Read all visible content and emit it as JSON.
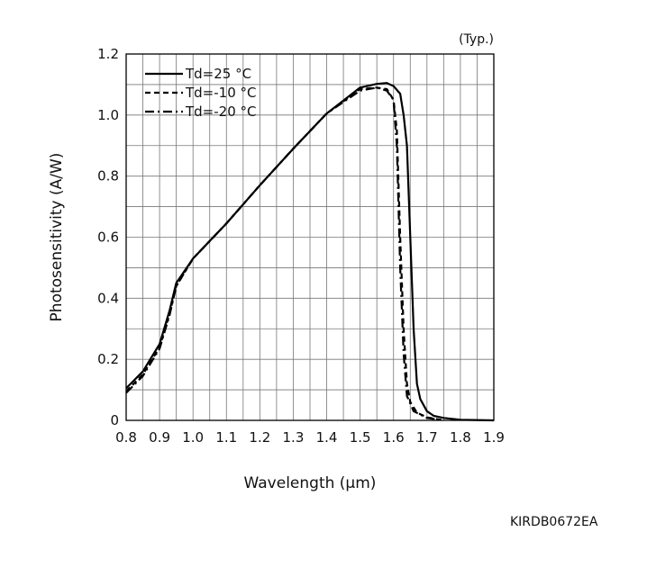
{
  "chart_data": {
    "type": "line",
    "note": "(Typ.)",
    "xlabel": "Wavelength (μm)",
    "ylabel": "Photosensitivity (A/W)",
    "xlim": [
      0.8,
      1.9
    ],
    "ylim": [
      0,
      1.2
    ],
    "grid": true,
    "legend_position": "top-left",
    "x_ticks": [
      "0.8",
      "0.9",
      "1.0",
      "1.1",
      "1.2",
      "1.3",
      "1.4",
      "1.5",
      "1.6",
      "1.7",
      "1.8",
      "1.9"
    ],
    "y_ticks": [
      "0",
      "0.2",
      "0.4",
      "0.6",
      "0.8",
      "1.0",
      "1.2"
    ],
    "series": [
      {
        "name": "Td=25 °C",
        "style": "solid",
        "color": "#000000",
        "points": [
          [
            0.8,
            0.105
          ],
          [
            0.85,
            0.16
          ],
          [
            0.9,
            0.25
          ],
          [
            0.93,
            0.36
          ],
          [
            0.95,
            0.45
          ],
          [
            1.0,
            0.53
          ],
          [
            1.1,
            0.645
          ],
          [
            1.2,
            0.77
          ],
          [
            1.3,
            0.89
          ],
          [
            1.4,
            1.005
          ],
          [
            1.5,
            1.09
          ],
          [
            1.55,
            1.102
          ],
          [
            1.58,
            1.105
          ],
          [
            1.6,
            1.095
          ],
          [
            1.62,
            1.07
          ],
          [
            1.63,
            1.0
          ],
          [
            1.64,
            0.9
          ],
          [
            1.65,
            0.6
          ],
          [
            1.66,
            0.3
          ],
          [
            1.67,
            0.12
          ],
          [
            1.68,
            0.07
          ],
          [
            1.7,
            0.03
          ],
          [
            1.72,
            0.015
          ],
          [
            1.75,
            0.008
          ],
          [
            1.8,
            0.002
          ],
          [
            1.9,
            0.0
          ]
        ]
      },
      {
        "name": "Td=-10 °C",
        "style": "dashed",
        "color": "#000000",
        "points": [
          [
            0.8,
            0.095
          ],
          [
            0.85,
            0.15
          ],
          [
            0.9,
            0.24
          ],
          [
            0.93,
            0.35
          ],
          [
            0.95,
            0.44
          ],
          [
            1.0,
            0.53
          ],
          [
            1.1,
            0.645
          ],
          [
            1.2,
            0.77
          ],
          [
            1.3,
            0.89
          ],
          [
            1.4,
            1.005
          ],
          [
            1.5,
            1.085
          ],
          [
            1.55,
            1.09
          ],
          [
            1.58,
            1.085
          ],
          [
            1.6,
            1.05
          ],
          [
            1.61,
            0.95
          ],
          [
            1.62,
            0.6
          ],
          [
            1.63,
            0.3
          ],
          [
            1.64,
            0.12
          ],
          [
            1.65,
            0.06
          ],
          [
            1.67,
            0.025
          ],
          [
            1.7,
            0.01
          ],
          [
            1.75,
            0.0
          ]
        ]
      },
      {
        "name": "Td=-20 °C",
        "style": "dashdot",
        "color": "#000000",
        "points": [
          [
            0.8,
            0.09
          ],
          [
            0.85,
            0.145
          ],
          [
            0.9,
            0.235
          ],
          [
            0.93,
            0.345
          ],
          [
            0.95,
            0.44
          ],
          [
            1.0,
            0.53
          ],
          [
            1.1,
            0.645
          ],
          [
            1.2,
            0.77
          ],
          [
            1.3,
            0.89
          ],
          [
            1.4,
            1.005
          ],
          [
            1.5,
            1.08
          ],
          [
            1.55,
            1.09
          ],
          [
            1.58,
            1.08
          ],
          [
            1.6,
            1.05
          ],
          [
            1.61,
            0.9
          ],
          [
            1.62,
            0.5
          ],
          [
            1.63,
            0.22
          ],
          [
            1.64,
            0.08
          ],
          [
            1.66,
            0.03
          ],
          [
            1.7,
            0.008
          ],
          [
            1.75,
            0.0
          ]
        ]
      }
    ]
  },
  "figure_code": "KIRDB0672EA"
}
